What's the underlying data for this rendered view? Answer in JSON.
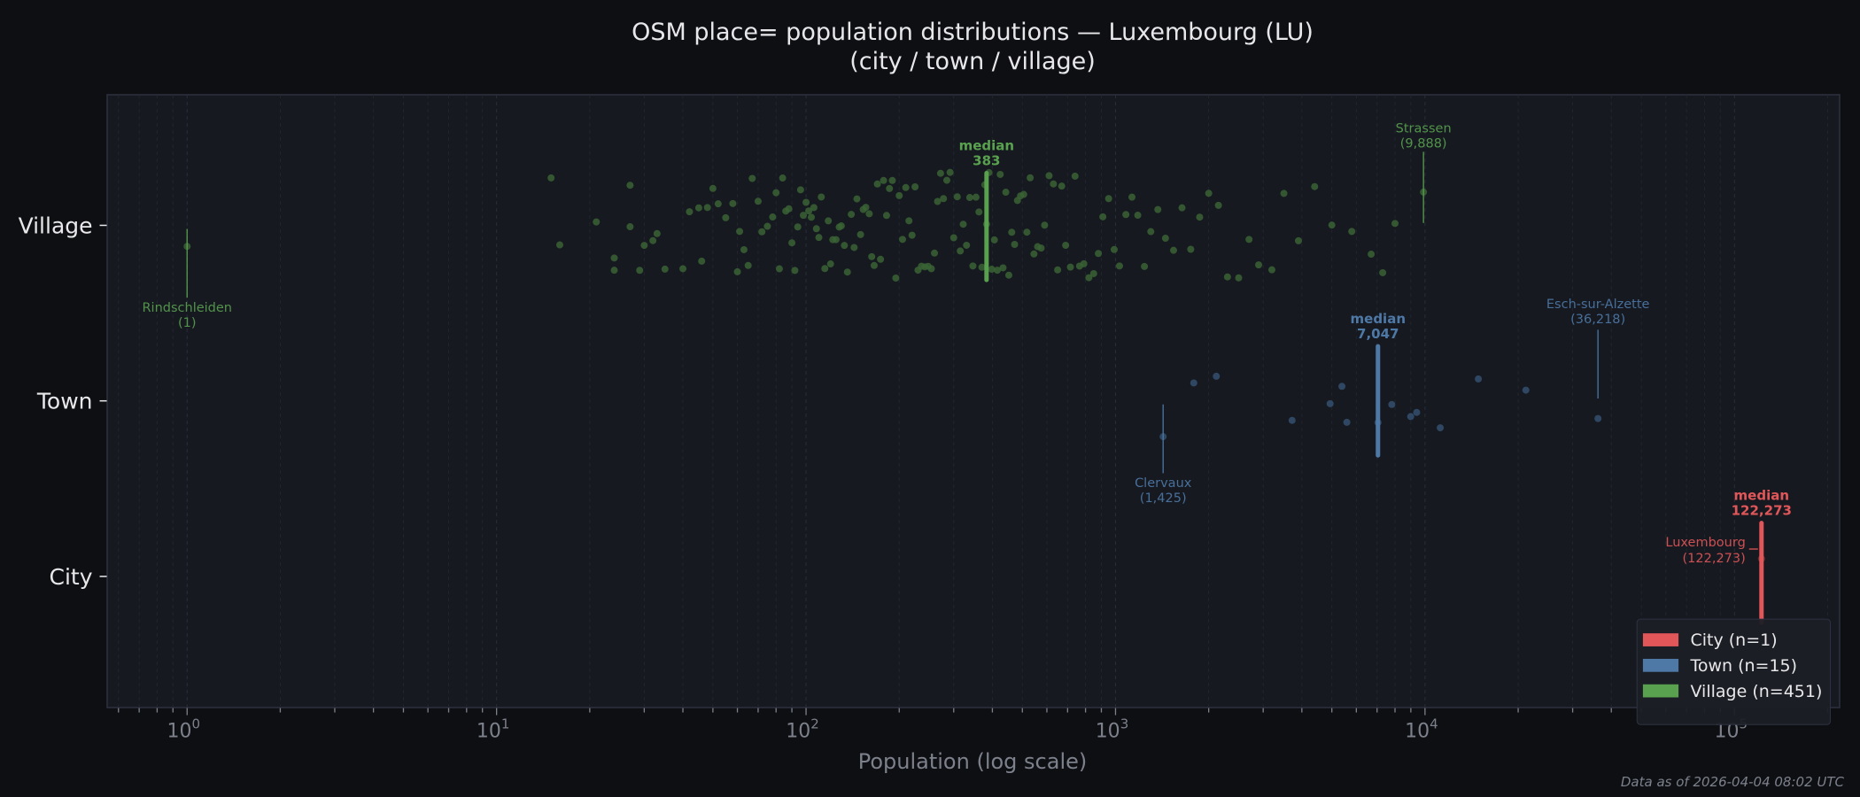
{
  "chart_data": {
    "type": "scatter",
    "title": "OSM place= population distributions — Luxembourg (LU)",
    "subtitle": "(city / town / village)",
    "xlabel": "Population (log scale)",
    "ylabel": "",
    "xscale": "log",
    "xlim": [
      0.55,
      219000
    ],
    "xticks": [
      {
        "base": "10",
        "exp": "0",
        "value": 1
      },
      {
        "base": "10",
        "exp": "1",
        "value": 10
      },
      {
        "base": "10",
        "exp": "2",
        "value": 100
      },
      {
        "base": "10",
        "exp": "3",
        "value": 1000
      },
      {
        "base": "10",
        "exp": "4",
        "value": 10000
      },
      {
        "base": "10",
        "exp": "5",
        "value": 100000
      }
    ],
    "categories": [
      "City",
      "Town",
      "Village"
    ],
    "grid": "vertical minor dashed",
    "legend_position": "bottom-right",
    "footnote": "Data as of 2026-04-04 08:02 UTC",
    "series": [
      {
        "name": "City",
        "legend": "City  (n=1)",
        "color": "#e15759",
        "n": 1,
        "median": 122273,
        "median_label": "median",
        "median_value_label": "122,273",
        "values": [
          122273
        ],
        "annotations": [
          {
            "name": "Luxembourg",
            "value": 122273,
            "value_label": "(122,273)"
          }
        ]
      },
      {
        "name": "Town",
        "legend": "Town  (n=15)",
        "color": "#4e79a7",
        "n": 15,
        "median": 7047,
        "median_label": "median",
        "median_value_label": "7,047",
        "values": [
          1425,
          1790,
          2117,
          3720,
          4935,
          5390,
          5590,
          7047,
          7810,
          8990,
          9400,
          11200,
          14870,
          21180,
          36218
        ],
        "annotations": [
          {
            "name": "Clervaux",
            "value": 1425,
            "value_label": "(1,425)"
          },
          {
            "name": "Esch-sur-Alzette",
            "value": 36218,
            "value_label": "(36,218)"
          }
        ]
      },
      {
        "name": "Village",
        "legend": "Village  (n=451)",
        "color": "#59a14f",
        "n": 451,
        "median": 383,
        "median_label": "median",
        "median_value_label": "383",
        "values": [
          1,
          15,
          16,
          21,
          24,
          24,
          27,
          27,
          29,
          30,
          32,
          33,
          35,
          40,
          42,
          45,
          46,
          48,
          50,
          52,
          55,
          58,
          60,
          61,
          63,
          65,
          67,
          70,
          72,
          75,
          78,
          80,
          82,
          84,
          86,
          88,
          90,
          92,
          94,
          96,
          98,
          100,
          102,
          104,
          106,
          108,
          110,
          112,
          115,
          118,
          120,
          122,
          125,
          128,
          130,
          133,
          136,
          140,
          143,
          146,
          150,
          153,
          156,
          160,
          163,
          166,
          170,
          174,
          178,
          182,
          186,
          190,
          195,
          200,
          205,
          210,
          215,
          220,
          225,
          230,
          236,
          242,
          248,
          254,
          260,
          266,
          272,
          278,
          285,
          292,
          300,
          308,
          315,
          322,
          330,
          338,
          346,
          354,
          362,
          370,
          378,
          383,
          390,
          398,
          406,
          415,
          424,
          433,
          442,
          452,
          462,
          472,
          482,
          493,
          505,
          517,
          530,
          545,
          560,
          575,
          590,
          610,
          630,
          650,
          670,
          690,
          715,
          740,
          765,
          790,
          820,
          850,
          880,
          910,
          950,
          990,
          1030,
          1080,
          1130,
          1180,
          1240,
          1300,
          1370,
          1450,
          1540,
          1640,
          1750,
          1870,
          2000,
          2150,
          2300,
          2500,
          2700,
          2900,
          3200,
          3500,
          3900,
          4400,
          5000,
          5800,
          6700,
          7300,
          8000,
          9888
        ],
        "annotations": [
          {
            "name": "Rindschleiden",
            "value": 1,
            "value_label": "(1)"
          },
          {
            "name": "Strassen",
            "value": 9888,
            "value_label": "(9,888)"
          }
        ]
      }
    ]
  }
}
